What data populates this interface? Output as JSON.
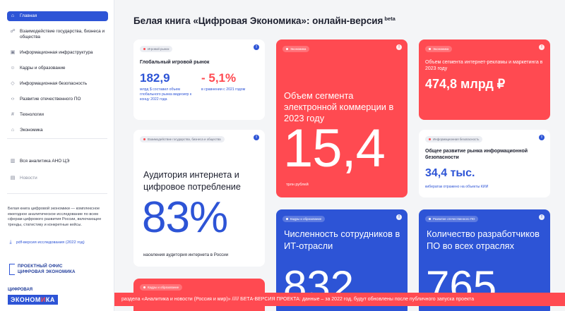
{
  "sidebar": {
    "items": [
      {
        "label": "Главная",
        "icon": "home-icon",
        "active": true
      },
      {
        "label": "Взаимодействие государства, бизнеса и общества",
        "icon": "people-icon"
      },
      {
        "label": "Информационная инфраструктура",
        "icon": "network-icon"
      },
      {
        "label": "Кадры и образование",
        "icon": "users-icon"
      },
      {
        "label": "Информационная безопасность",
        "icon": "shield-icon"
      },
      {
        "label": "Развитие отечественного ПО",
        "icon": "code-icon"
      },
      {
        "label": "Технологии",
        "icon": "hash-icon"
      },
      {
        "label": "Экономика",
        "icon": "store-icon"
      }
    ],
    "secondary": [
      {
        "label": "Вся аналитика АНО ЦЭ",
        "icon": "chart-icon"
      },
      {
        "label": "Новости",
        "icon": "news-icon"
      }
    ],
    "about": "Белая книга цифровой экономики — комплексное ежегодное аналитическое исследование по всем сферам цифрового развития России, включающее тренды, статистику и конкретные кейсы.",
    "pdf_link": "pdf-версия исследования (2022 год)",
    "logo_office_line1": "ПРОЕКТНЫЙ ОФИС",
    "logo_office_line2": "ЦИФРОВАЯ ЭКОНОМИКА",
    "logo_brand_top": "ЦИФРОВАЯ",
    "logo_brand_bottom_a": "ЭКОНОМ",
    "logo_brand_bottom_b": "И",
    "logo_brand_bottom_c": "КА"
  },
  "header": {
    "title": "Белая книга «Цифровая Экономика»: онлайн-версия",
    "beta": "beta"
  },
  "cards": {
    "games": {
      "tag": "Игровой рынок",
      "title": "Глобальный игровой рынок",
      "value1": "182,9",
      "value2": "- 5,1%",
      "sub1": "млрд $ составил объем глобального рынка видеоигр к концу 2022 года",
      "sub2": "в сравнении с 2021 годом"
    },
    "ecommerce": {
      "tag": "Экономика",
      "title": "Объем сегмента электронной коммерции в 2023 году",
      "value": "15,4",
      "unit": "трлн рублей"
    },
    "ads": {
      "tag": "Экономика",
      "title": "Объем сегмента интернет-рекламы и маркетинга в 2023 году",
      "value": "474,8 млрд ₽"
    },
    "audience": {
      "tag": "Взаимодействие государства, бизнеса и общества",
      "title": "Аудитория интернета и цифровое потребление",
      "value": "83%",
      "unit": "населения аудитория интернета в России"
    },
    "infosec": {
      "tag": "Информационная безопасность",
      "title": "Общее развитие рынка информационной безопасности",
      "value": "34,4 тыс.",
      "unit": "кибератак отражено на объекты КИИ"
    },
    "it_staff": {
      "tag": "Кадры и образование",
      "title": "Численность сотрудников в ИТ-отрасли",
      "value": "832"
    },
    "devs": {
      "tag": "Развитие отечественного ПО",
      "title": "Количество разработчиков ПО во всех отраслях",
      "value": "765"
    },
    "education": {
      "tag": "Кадры и образование"
    }
  },
  "marquee": "раздела «Аналитика и новости (Россия и мир)» ///// БЕТА-ВЕРСИЯ ПРОЕКТА: данные – за 2022 год, будут обновлены после публичного запуска проекта",
  "colors": {
    "accent_blue": "#2d54d6",
    "accent_red": "#ff4a51"
  }
}
